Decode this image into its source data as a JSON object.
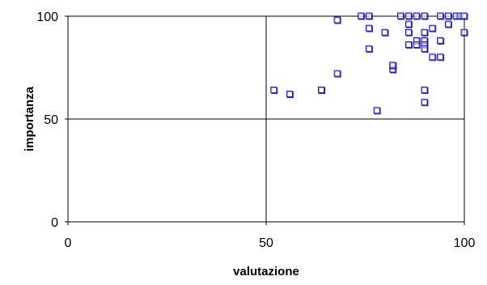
{
  "chart_data": {
    "type": "scatter",
    "title": "",
    "xlabel": "valutazione",
    "ylabel": "importanza",
    "xlim": [
      0,
      100
    ],
    "ylim": [
      0,
      100
    ],
    "x_ticks": [
      0,
      50,
      100
    ],
    "y_ticks": [
      0,
      50,
      100
    ],
    "grid": true,
    "legend": "none",
    "marker": "open-square",
    "marker_color": "#1f1fa8",
    "series": [
      {
        "points": [
          [
            52,
            64
          ],
          [
            56,
            62
          ],
          [
            64,
            64
          ],
          [
            64,
            64
          ],
          [
            68,
            72
          ],
          [
            68,
            98
          ],
          [
            74,
            100
          ],
          [
            76,
            100
          ],
          [
            76,
            94
          ],
          [
            76,
            84
          ],
          [
            78,
            54
          ],
          [
            80,
            92
          ],
          [
            82,
            76
          ],
          [
            82,
            74
          ],
          [
            82,
            76
          ],
          [
            84,
            100
          ],
          [
            86,
            100
          ],
          [
            86,
            96
          ],
          [
            86,
            92
          ],
          [
            86,
            86
          ],
          [
            88,
            100
          ],
          [
            88,
            88
          ],
          [
            88,
            86
          ],
          [
            90,
            100
          ],
          [
            90,
            92
          ],
          [
            90,
            88
          ],
          [
            90,
            86
          ],
          [
            90,
            84
          ],
          [
            90,
            64
          ],
          [
            90,
            58
          ],
          [
            92,
            94
          ],
          [
            92,
            80
          ],
          [
            94,
            100
          ],
          [
            94,
            88
          ],
          [
            94,
            80
          ],
          [
            96,
            100
          ],
          [
            96,
            96
          ],
          [
            98,
            100
          ],
          [
            99,
            100
          ],
          [
            100,
            100
          ],
          [
            100,
            92
          ],
          [
            100,
            100
          ]
        ]
      }
    ]
  }
}
